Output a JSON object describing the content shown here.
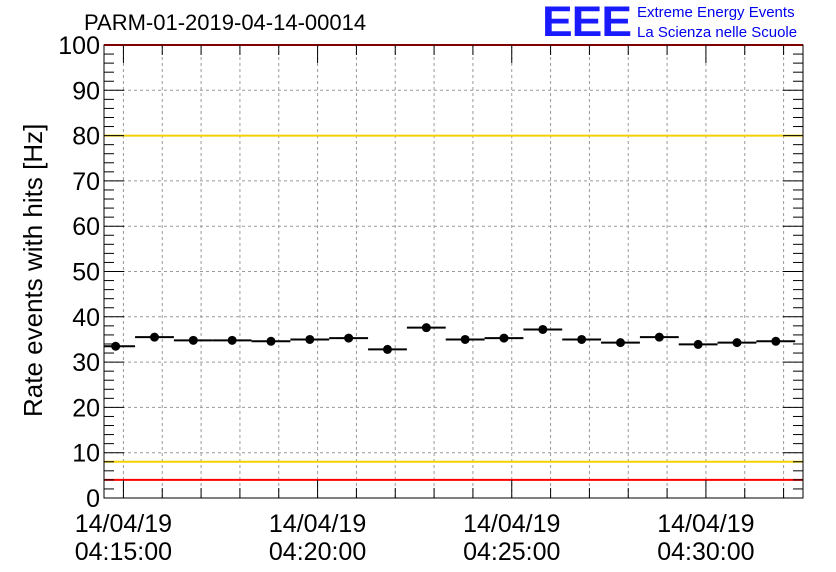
{
  "header": {
    "title": "PARM-01-2019-04-14-00014"
  },
  "logo": {
    "mark": "EEE",
    "line1": "Extreme Energy Events",
    "line2": "La Scienza nelle Scuole",
    "color": "#1a1aff"
  },
  "chart_data": {
    "type": "scatter",
    "title": "PARM-01-2019-04-14-00014",
    "xlabel": "",
    "ylabel": "Rate events with hits [Hz]",
    "x_unit": "seconds",
    "xlim": [
      "2019-04-14T04:14:30",
      "2019-04-14T04:32:30"
    ],
    "ylim": [
      0,
      100
    ],
    "y_ticks": [
      0,
      10,
      20,
      30,
      40,
      50,
      60,
      70,
      80,
      90,
      100
    ],
    "x_tick_labels": [
      {
        "time": "2019-04-14T04:15:00",
        "date": "14/04/19",
        "clock": "04:15:00"
      },
      {
        "time": "2019-04-14T04:20:00",
        "date": "14/04/19",
        "clock": "04:20:00"
      },
      {
        "time": "2019-04-14T04:25:00",
        "date": "14/04/19",
        "clock": "04:25:00"
      },
      {
        "time": "2019-04-14T04:30:00",
        "date": "14/04/19",
        "clock": "04:30:00"
      }
    ],
    "grid": true,
    "bin_width_seconds": 60,
    "points": [
      {
        "x": "2019-04-14T04:14:48",
        "y": 33.5
      },
      {
        "x": "2019-04-14T04:15:48",
        "y": 35.5
      },
      {
        "x": "2019-04-14T04:16:48",
        "y": 34.8
      },
      {
        "x": "2019-04-14T04:17:48",
        "y": 34.8
      },
      {
        "x": "2019-04-14T04:18:48",
        "y": 34.6
      },
      {
        "x": "2019-04-14T04:19:48",
        "y": 35.0
      },
      {
        "x": "2019-04-14T04:20:48",
        "y": 35.3
      },
      {
        "x": "2019-04-14T04:21:48",
        "y": 32.8
      },
      {
        "x": "2019-04-14T04:22:48",
        "y": 37.6
      },
      {
        "x": "2019-04-14T04:23:48",
        "y": 35.0
      },
      {
        "x": "2019-04-14T04:24:48",
        "y": 35.3
      },
      {
        "x": "2019-04-14T04:25:48",
        "y": 37.2
      },
      {
        "x": "2019-04-14T04:26:48",
        "y": 35.0
      },
      {
        "x": "2019-04-14T04:27:48",
        "y": 34.3
      },
      {
        "x": "2019-04-14T04:28:48",
        "y": 35.5
      },
      {
        "x": "2019-04-14T04:29:48",
        "y": 33.9
      },
      {
        "x": "2019-04-14T04:30:48",
        "y": 34.3
      },
      {
        "x": "2019-04-14T04:31:48",
        "y": 34.6
      }
    ],
    "reference_lines": [
      {
        "y": 100,
        "color": "#ff0000"
      },
      {
        "y": 80,
        "color": "#f5d000"
      },
      {
        "y": 8,
        "color": "#f5d000"
      },
      {
        "y": 4,
        "color": "#ff0000"
      }
    ],
    "marker_color": "#000000"
  }
}
